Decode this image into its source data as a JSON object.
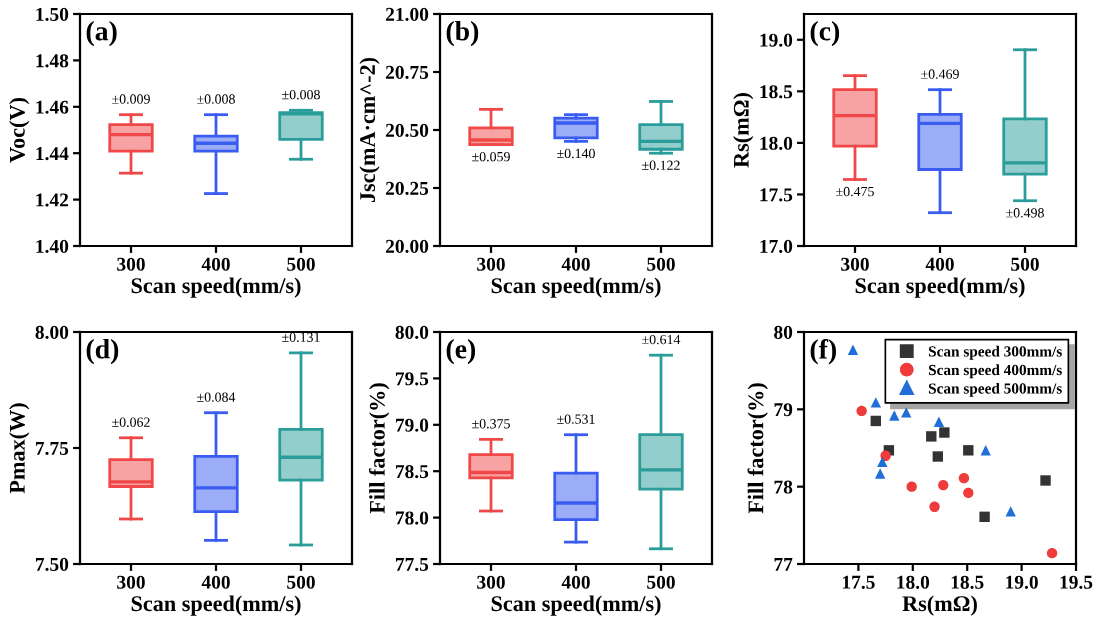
{
  "chart_data": [
    {
      "type": "box",
      "title": "(a)",
      "xlabel": "Scan speed(mm/s)",
      "ylabel": "Voc(V)",
      "categories": [
        "300",
        "400",
        "500"
      ],
      "colors": [
        "#f04848",
        "#3a5cf0",
        "#2a9d9a"
      ],
      "ylim": [
        1.4,
        1.5
      ],
      "yticks": [
        {
          "value": 1.4,
          "label": "1.40"
        },
        {
          "value": 1.42,
          "label": "1.42"
        },
        {
          "value": 1.44,
          "label": "1.44"
        },
        {
          "value": 1.46,
          "label": "1.46"
        },
        {
          "value": 1.48,
          "label": "1.48"
        },
        {
          "value": 1.5,
          "label": "1.50"
        }
      ],
      "grid": false,
      "legend": false,
      "boxes": [
        {
          "low": 1.4314,
          "q1": 1.4409,
          "median": 1.448,
          "q3": 1.4523,
          "high": 1.4566
        },
        {
          "low": 1.4226,
          "q1": 1.4409,
          "median": 1.4443,
          "q3": 1.4474,
          "high": 1.4566
        },
        {
          "low": 1.4374,
          "q1": 1.446,
          "median": 1.457,
          "q3": 1.4575,
          "high": 1.4585
        }
      ],
      "annotations": [
        "±0.009",
        "±0.008",
        "±0.008"
      ]
    },
    {
      "type": "box",
      "title": "(b)",
      "xlabel": "Scan speed(mm/s)",
      "ylabel": "Jsc(mA·cm^-2)",
      "categories": [
        "300",
        "400",
        "500"
      ],
      "colors": [
        "#f04848",
        "#3a5cf0",
        "#2a9d9a"
      ],
      "ylim": [
        20.0,
        21.0
      ],
      "yticks": [
        {
          "value": 20.0,
          "label": "20.00"
        },
        {
          "value": 20.25,
          "label": "20.25"
        },
        {
          "value": 20.5,
          "label": "20.50"
        },
        {
          "value": 20.75,
          "label": "20.75"
        },
        {
          "value": 21.0,
          "label": "21.00"
        }
      ],
      "grid": false,
      "legend": false,
      "boxes": [
        {
          "low": 20.437,
          "q1": 20.437,
          "median": 20.457,
          "q3": 20.509,
          "high": 20.589
        },
        {
          "low": 20.451,
          "q1": 20.466,
          "median": 20.53,
          "q3": 20.551,
          "high": 20.566
        },
        {
          "low": 20.4,
          "q1": 20.417,
          "median": 20.451,
          "q3": 20.523,
          "high": 20.623
        }
      ],
      "annotations": [
        "±0.059",
        "±0.140",
        "±0.122"
      ]
    },
    {
      "type": "box",
      "title": "(c)",
      "xlabel": "Scan speed(mm/s)",
      "ylabel": "Rs(mΩ)",
      "categories": [
        "300",
        "400",
        "500"
      ],
      "colors": [
        "#f04848",
        "#3a5cf0",
        "#2a9d9a"
      ],
      "ylim": [
        17.0,
        19.25
      ],
      "yticks": [
        {
          "value": 17.0,
          "label": "17.0"
        },
        {
          "value": 17.5,
          "label": "17.5"
        },
        {
          "value": 18.0,
          "label": "18.0"
        },
        {
          "value": 18.5,
          "label": "18.5"
        },
        {
          "value": 19.0,
          "label": "19.0"
        }
      ],
      "grid": false,
      "legend": false,
      "boxes": [
        {
          "low": 17.645,
          "q1": 17.968,
          "median": 18.265,
          "q3": 18.516,
          "high": 18.652
        },
        {
          "low": 17.323,
          "q1": 17.742,
          "median": 18.19,
          "q3": 18.277,
          "high": 18.516
        },
        {
          "low": 17.439,
          "q1": 17.697,
          "median": 17.806,
          "q3": 18.232,
          "high": 18.903
        }
      ],
      "annotations": [
        "±0.475",
        "±0.469",
        "±0.498"
      ]
    },
    {
      "type": "box",
      "title": "(d)",
      "xlabel": "Scan speed(mm/s)",
      "ylabel": "Pmax(W)",
      "categories": [
        "300",
        "400",
        "500"
      ],
      "colors": [
        "#f04848",
        "#3a5cf0",
        "#2a9d9a"
      ],
      "ylim": [
        7.5,
        8.0
      ],
      "yticks": [
        {
          "value": 7.5,
          "label": "7.50"
        },
        {
          "value": 7.75,
          "label": "7.75"
        },
        {
          "value": 8.0,
          "label": "8.00"
        }
      ],
      "grid": false,
      "legend": false,
      "boxes": [
        {
          "low": 7.597,
          "q1": 7.667,
          "median": 7.677,
          "q3": 7.725,
          "high": 7.772
        },
        {
          "low": 7.551,
          "q1": 7.613,
          "median": 7.664,
          "q3": 7.732,
          "high": 7.826
        },
        {
          "low": 7.541,
          "q1": 7.681,
          "median": 7.73,
          "q3": 7.79,
          "high": 7.955
        }
      ],
      "annotations": [
        "±0.062",
        "±0.084",
        "±0.131"
      ]
    },
    {
      "type": "box",
      "title": "(e)",
      "xlabel": "Scan speed(mm/s)",
      "ylabel": "Fill factor(%)",
      "categories": [
        "300",
        "400",
        "500"
      ],
      "colors": [
        "#f04848",
        "#3a5cf0",
        "#2a9d9a"
      ],
      "ylim": [
        77.5,
        80.0
      ],
      "yticks": [
        {
          "value": 77.5,
          "label": "77.5"
        },
        {
          "value": 78.0,
          "label": "78.0"
        },
        {
          "value": 78.5,
          "label": "78.5"
        },
        {
          "value": 79.0,
          "label": "79.0"
        },
        {
          "value": 79.5,
          "label": "79.5"
        },
        {
          "value": 80.0,
          "label": "80.0"
        }
      ],
      "grid": false,
      "legend": false,
      "boxes": [
        {
          "low": 78.071,
          "q1": 78.429,
          "median": 78.486,
          "q3": 78.679,
          "high": 78.843
        },
        {
          "low": 77.736,
          "q1": 77.979,
          "median": 78.157,
          "q3": 78.479,
          "high": 78.893
        },
        {
          "low": 77.664,
          "q1": 78.307,
          "median": 78.514,
          "q3": 78.893,
          "high": 79.75
        }
      ],
      "annotations": [
        "±0.375",
        "±0.531",
        "±0.614"
      ]
    },
    {
      "type": "scatter",
      "title": "(f)",
      "xlabel": "Rs(mΩ)",
      "ylabel": "Fill factor(%)",
      "xlim": [
        17.0,
        19.5
      ],
      "xticks": [
        17.5,
        {
          "value": 18.0,
          "label": "18.0"
        },
        18.5,
        {
          "value": 19.0,
          "label": "19.0"
        },
        19.5
      ],
      "ylim": [
        77,
        80
      ],
      "yticks": [
        77,
        78,
        79,
        80
      ],
      "grid": false,
      "legend": "top right",
      "series": [
        {
          "name": "Scan speed 300mm/s",
          "color": "#333333",
          "marker": "square",
          "x": [
            17.66,
            17.78,
            18.17,
            18.29,
            18.23,
            18.51,
            18.66,
            19.22
          ],
          "values": [
            78.85,
            78.47,
            78.65,
            78.7,
            78.39,
            78.47,
            77.61,
            78.08
          ]
        },
        {
          "name": "Scan speed 400mm/s",
          "color": "#ef3b3b",
          "marker": "circle",
          "x": [
            17.53,
            17.75,
            17.99,
            18.2,
            18.28,
            18.47,
            18.51,
            19.28
          ],
          "values": [
            78.98,
            78.4,
            78.0,
            77.74,
            78.02,
            78.11,
            77.92,
            77.14
          ]
        },
        {
          "name": "Scan speed 500mm/s",
          "color": "#1f6fd6",
          "marker": "triangle",
          "x": [
            17.45,
            17.66,
            17.83,
            17.94,
            17.72,
            17.7,
            18.24,
            18.67,
            18.9
          ],
          "values": [
            79.77,
            79.09,
            78.92,
            78.96,
            78.32,
            78.17,
            78.84,
            78.47,
            77.68
          ]
        }
      ]
    }
  ]
}
